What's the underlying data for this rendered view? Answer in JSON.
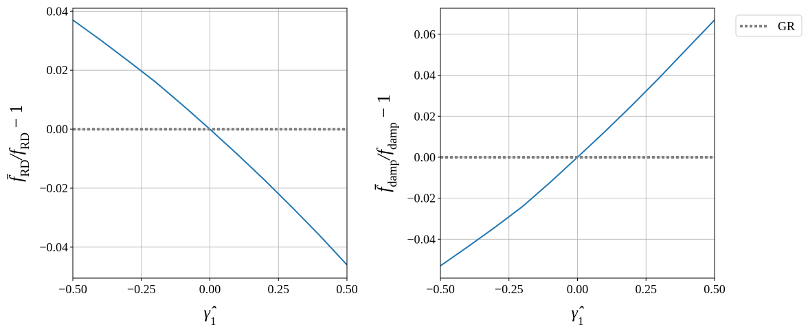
{
  "chart_data": [
    {
      "type": "line",
      "xlabel": [
        "γ̂",
        "1"
      ],
      "ylabel": [
        "f̄",
        "RD",
        "/f",
        "RD",
        " − 1"
      ],
      "x": [
        -0.5,
        -0.4,
        -0.3,
        -0.2,
        -0.1,
        0,
        0.1,
        0.2,
        0.3,
        0.4,
        0.5
      ],
      "series": [
        {
          "color": "#1f77b4",
          "values": [
            0.037,
            0.0303,
            0.0233,
            0.0161,
            0.0082,
            0,
            -0.0085,
            -0.0173,
            -0.0265,
            -0.036,
            -0.046
          ]
        },
        {
          "color": "#808080",
          "linestyle": "dotted",
          "x": [
            -0.5,
            0.5
          ],
          "values": [
            0,
            0
          ]
        }
      ],
      "xlim": [
        -0.5,
        0.5
      ],
      "xticks": [
        {
          "value": -0.5,
          "label": "−0.50"
        },
        {
          "value": -0.25,
          "label": "−0.25"
        },
        {
          "value": 0,
          "label": "0.00"
        },
        0.25,
        {
          "value": 0.5,
          "label": "0.50"
        }
      ],
      "ylim": [
        -0.0505,
        0.041
      ],
      "yticks": [
        {
          "value": -0.04,
          "label": "−0.04"
        },
        {
          "value": -0.02,
          "label": "−0.02"
        },
        {
          "value": 0,
          "label": "0.00"
        },
        0.02,
        0.04
      ],
      "grid": true
    },
    {
      "type": "line",
      "xlabel": [
        "γ̂",
        "1"
      ],
      "ylabel": [
        "f̄",
        "damp",
        "/f",
        "damp",
        " − 1"
      ],
      "x": [
        -0.5,
        -0.4,
        -0.3,
        -0.2,
        -0.1,
        0,
        0.1,
        0.2,
        0.3,
        0.4,
        0.5
      ],
      "series": [
        {
          "color": "#1f77b4",
          "values": [
            -0.053,
            -0.0437,
            -0.0341,
            -0.024,
            -0.0123,
            0,
            0.0125,
            0.0255,
            0.039,
            0.053,
            0.067
          ]
        },
        {
          "name": "GR",
          "color": "#808080",
          "linestyle": "dotted",
          "x": [
            -0.5,
            0.5
          ],
          "values": [
            0,
            0
          ]
        }
      ],
      "xlim": [
        -0.5,
        0.5
      ],
      "xticks": [
        {
          "value": -0.5,
          "label": "−0.50"
        },
        {
          "value": -0.25,
          "label": "−0.25"
        },
        {
          "value": 0,
          "label": "0.00"
        },
        0.25,
        {
          "value": 0.5,
          "label": "0.50"
        }
      ],
      "ylim": [
        -0.059,
        0.0727
      ],
      "yticks": [
        {
          "value": -0.04,
          "label": "−0.04"
        },
        {
          "value": -0.02,
          "label": "−0.02"
        },
        {
          "value": 0,
          "label": "0.00"
        },
        0.02,
        0.04,
        0.06
      ],
      "grid": true,
      "legend": "outside upper right"
    }
  ]
}
